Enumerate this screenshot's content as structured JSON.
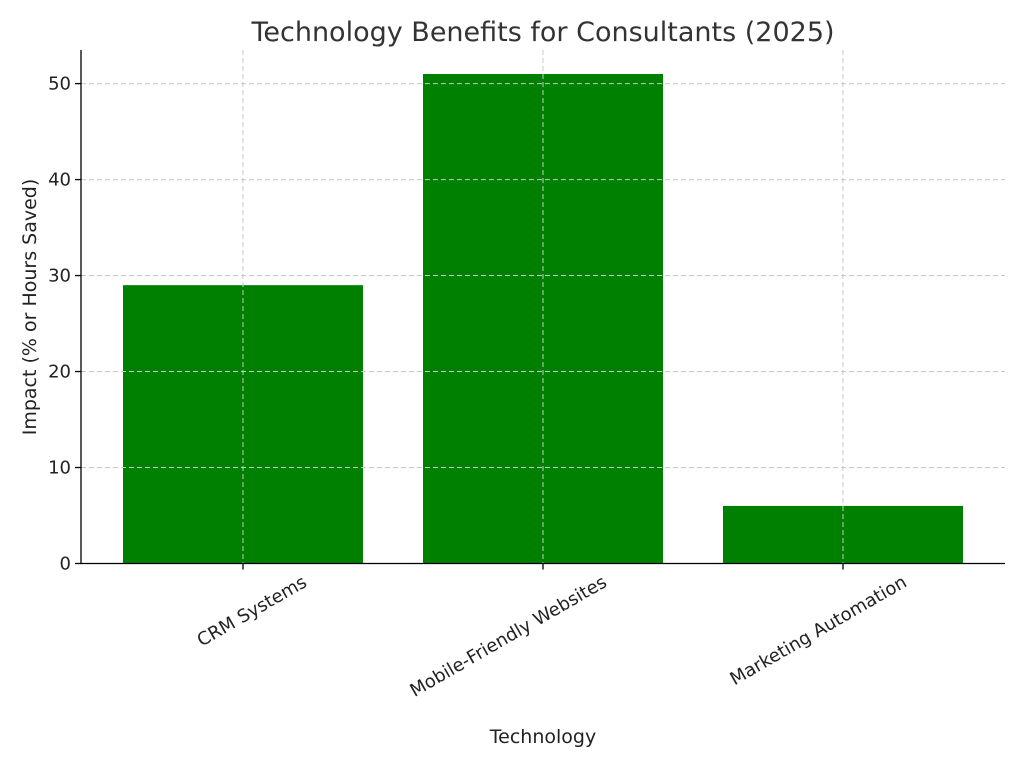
{
  "chart_data": {
    "type": "bar",
    "title": "Technology Benefits for Consultants (2025)",
    "xlabel": "Technology",
    "ylabel": "Impact (% or Hours Saved)",
    "categories": [
      "CRM Systems",
      "Mobile-Friendly Websites",
      "Marketing Automation"
    ],
    "values": [
      29,
      51,
      6
    ],
    "ylim": [
      0,
      53.5
    ],
    "yticks": [
      0,
      10,
      20,
      30,
      40,
      50
    ],
    "bar_color": "#008000",
    "grid": true,
    "xtick_rotation_deg": -30
  }
}
